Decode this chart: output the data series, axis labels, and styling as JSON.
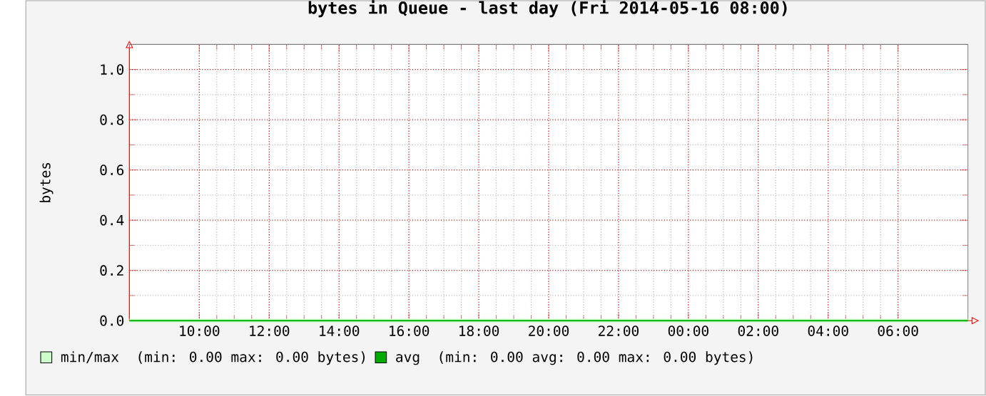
{
  "chart_data": {
    "type": "line",
    "title": "bytes in Queue - last day (Fri 2014-05-16 08:00)",
    "ylabel": "bytes",
    "x": [
      "2014-05-15T08:00",
      "2014-05-16T08:00"
    ],
    "series": [
      {
        "name": "min/max",
        "color": "#ccffcc",
        "values": [
          0,
          0
        ]
      },
      {
        "name": "avg",
        "color": "#00aa00",
        "values": [
          0,
          0
        ]
      }
    ],
    "annotations": [
      "(min: 0.00 max: 0.00 bytes)",
      "(min: 0.00 avg: 0.00 max: 0.00 bytes)"
    ],
    "xlim": [
      "2014-05-15T08:00",
      "2014-05-16T08:00"
    ],
    "ylim": [
      0,
      1.1
    ],
    "xticks": [
      {
        "value": "2014-05-15T10:00",
        "label": "10:00"
      },
      {
        "value": "2014-05-15T12:00",
        "label": "12:00"
      },
      {
        "value": "2014-05-15T14:00",
        "label": "14:00"
      },
      {
        "value": "2014-05-15T16:00",
        "label": "16:00"
      },
      {
        "value": "2014-05-15T18:00",
        "label": "18:00"
      },
      {
        "value": "2014-05-15T20:00",
        "label": "20:00"
      },
      {
        "value": "2014-05-15T22:00",
        "label": "22:00"
      },
      {
        "value": "2014-05-16T00:00",
        "label": "00:00"
      },
      {
        "value": "2014-05-16T02:00",
        "label": "02:00"
      },
      {
        "value": "2014-05-16T04:00",
        "label": "04:00"
      },
      {
        "value": "2014-05-16T06:00",
        "label": "06:00"
      }
    ],
    "yticks": [
      {
        "value": 0,
        "label": "0.0"
      },
      {
        "value": 0.2,
        "label": "0.2"
      },
      {
        "value": 0.4,
        "label": "0.4"
      },
      {
        "value": 0.6,
        "label": "0.6"
      },
      {
        "value": 0.8,
        "label": "0.8"
      },
      {
        "value": 1.0,
        "label": "1.0"
      }
    ],
    "grid": true,
    "legend": "bottom"
  }
}
